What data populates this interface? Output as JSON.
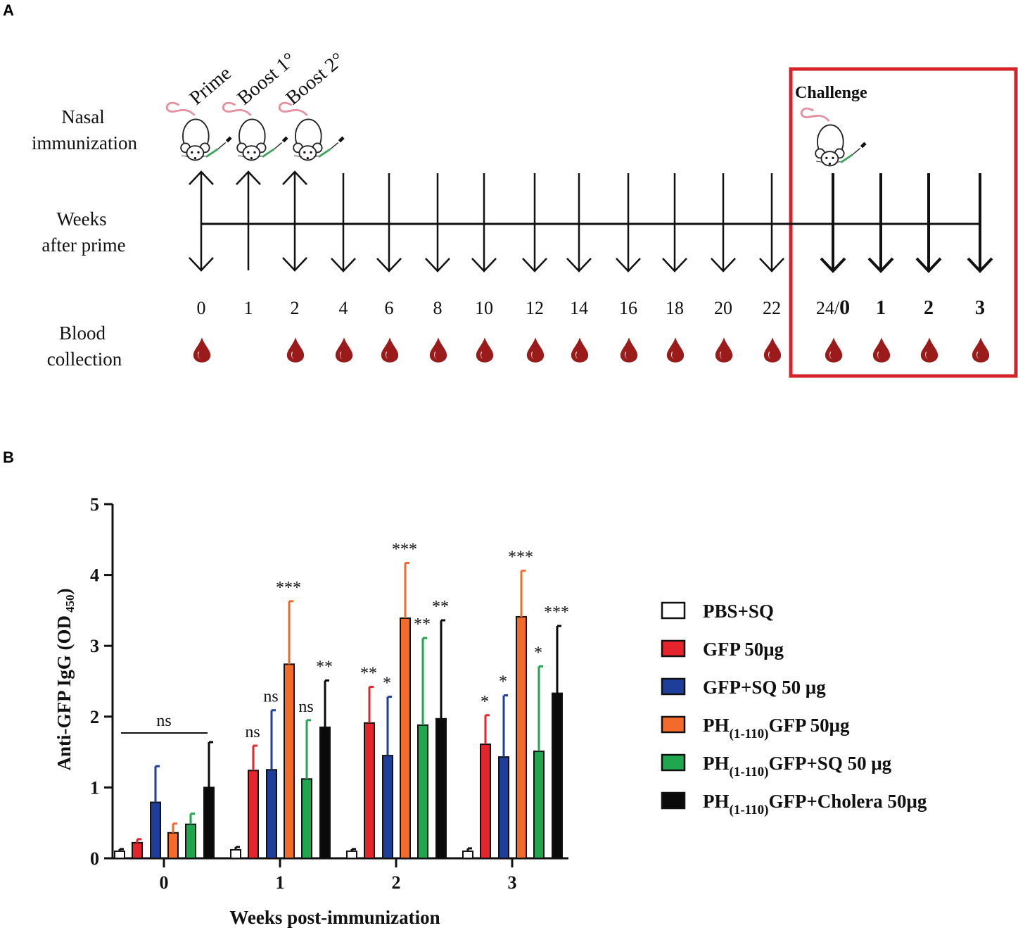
{
  "panel_a": {
    "letter": "A",
    "row_labels": {
      "nasal_line1": "Nasal",
      "nasal_line2": "immunization",
      "weeks_line1": "Weeks",
      "weeks_line2": "after prime",
      "blood_line1": "Blood",
      "blood_line2": "collection"
    },
    "stages": [
      "Prime",
      "Boost 1°",
      "Boost 2°"
    ],
    "challenge_label": "Challenge",
    "timepoints": [
      "0",
      "1",
      "2",
      "4",
      "6",
      "8",
      "10",
      "12",
      "14",
      "16",
      "18",
      "20",
      "22"
    ],
    "challenge_timepoints": {
      "first_plain": "24/",
      "first_bold": "0",
      "rest": [
        "1",
        "2",
        "3"
      ]
    },
    "blood_collected": [
      true,
      false,
      true,
      true,
      true,
      true,
      true,
      true,
      true,
      true,
      true,
      true,
      true,
      true,
      true,
      true,
      true
    ],
    "colors": {
      "highlight_box": "#d6232b",
      "drop": "#9b1b1b"
    }
  },
  "panel_b": {
    "letter": "B"
  },
  "chart_data": {
    "type": "bar",
    "title": "",
    "xlabel": "Weeks post-immunization",
    "ylabel": "Anti-GFP IgG (OD",
    "ylabel_sub": "450",
    "ylabel_close": ")",
    "ylim": [
      0,
      5
    ],
    "yticks": [
      "0",
      "1",
      "2",
      "3",
      "4",
      "5"
    ],
    "categories": [
      "0",
      "1",
      "2",
      "3"
    ],
    "series": [
      {
        "name": "PBS+SQ",
        "color": "#ffffff",
        "values": [
          0.1,
          0.12,
          0.1,
          0.1
        ],
        "errors": [
          0.03,
          0.04,
          0.03,
          0.04
        ],
        "sig": [
          "",
          "",
          "",
          ""
        ]
      },
      {
        "name": "GFP 50μg",
        "color": "#e6242b",
        "values": [
          0.22,
          1.24,
          1.91,
          1.61
        ],
        "errors": [
          0.05,
          0.35,
          0.51,
          0.41
        ],
        "sig": [
          "",
          "ns",
          "**",
          "*"
        ]
      },
      {
        "name": "GFP+SQ 50 μg",
        "color": "#1f3e9a",
        "values": [
          0.79,
          1.25,
          1.45,
          1.43
        ],
        "errors": [
          0.51,
          0.84,
          0.83,
          0.87
        ],
        "sig": [
          "",
          "ns",
          "*",
          "*"
        ]
      },
      {
        "name": "PH(1-110)GFP 50μg",
        "color": "#f26b2a",
        "values": [
          0.36,
          2.74,
          3.39,
          3.41
        ],
        "errors": [
          0.13,
          0.89,
          0.78,
          0.65
        ],
        "sig": [
          "",
          "***",
          "***",
          "***"
        ]
      },
      {
        "name": "PH(1-110)GFP+SQ 50 μg",
        "color": "#1fa64f",
        "values": [
          0.48,
          1.12,
          1.88,
          1.51
        ],
        "errors": [
          0.15,
          0.83,
          1.23,
          1.2
        ],
        "sig": [
          "",
          "ns",
          "**",
          "*"
        ]
      },
      {
        "name": "PH(1-110)GFP+Cholera 50μg",
        "color": "#0a0a0a",
        "values": [
          1.0,
          1.85,
          1.97,
          2.33
        ],
        "errors": [
          0.64,
          0.66,
          1.39,
          0.95
        ],
        "sig": [
          "",
          "**",
          "**",
          "***"
        ]
      }
    ],
    "group_annotation": {
      "category": "0",
      "text": "ns"
    },
    "legend": [
      {
        "base": "PBS+SQ",
        "sub": "",
        "rest": ""
      },
      {
        "base": "GFP 50μg",
        "sub": "",
        "rest": ""
      },
      {
        "base": "GFP+SQ 50 μg",
        "sub": "",
        "rest": ""
      },
      {
        "base": "PH",
        "sub": "(1-110)",
        "rest": "GFP 50μg"
      },
      {
        "base": "PH",
        "sub": "(1-110)",
        "rest": "GFP+SQ 50 μg"
      },
      {
        "base": "PH",
        "sub": "(1-110)",
        "rest": "GFP+Cholera 50μg"
      }
    ],
    "legend_position": "right"
  }
}
